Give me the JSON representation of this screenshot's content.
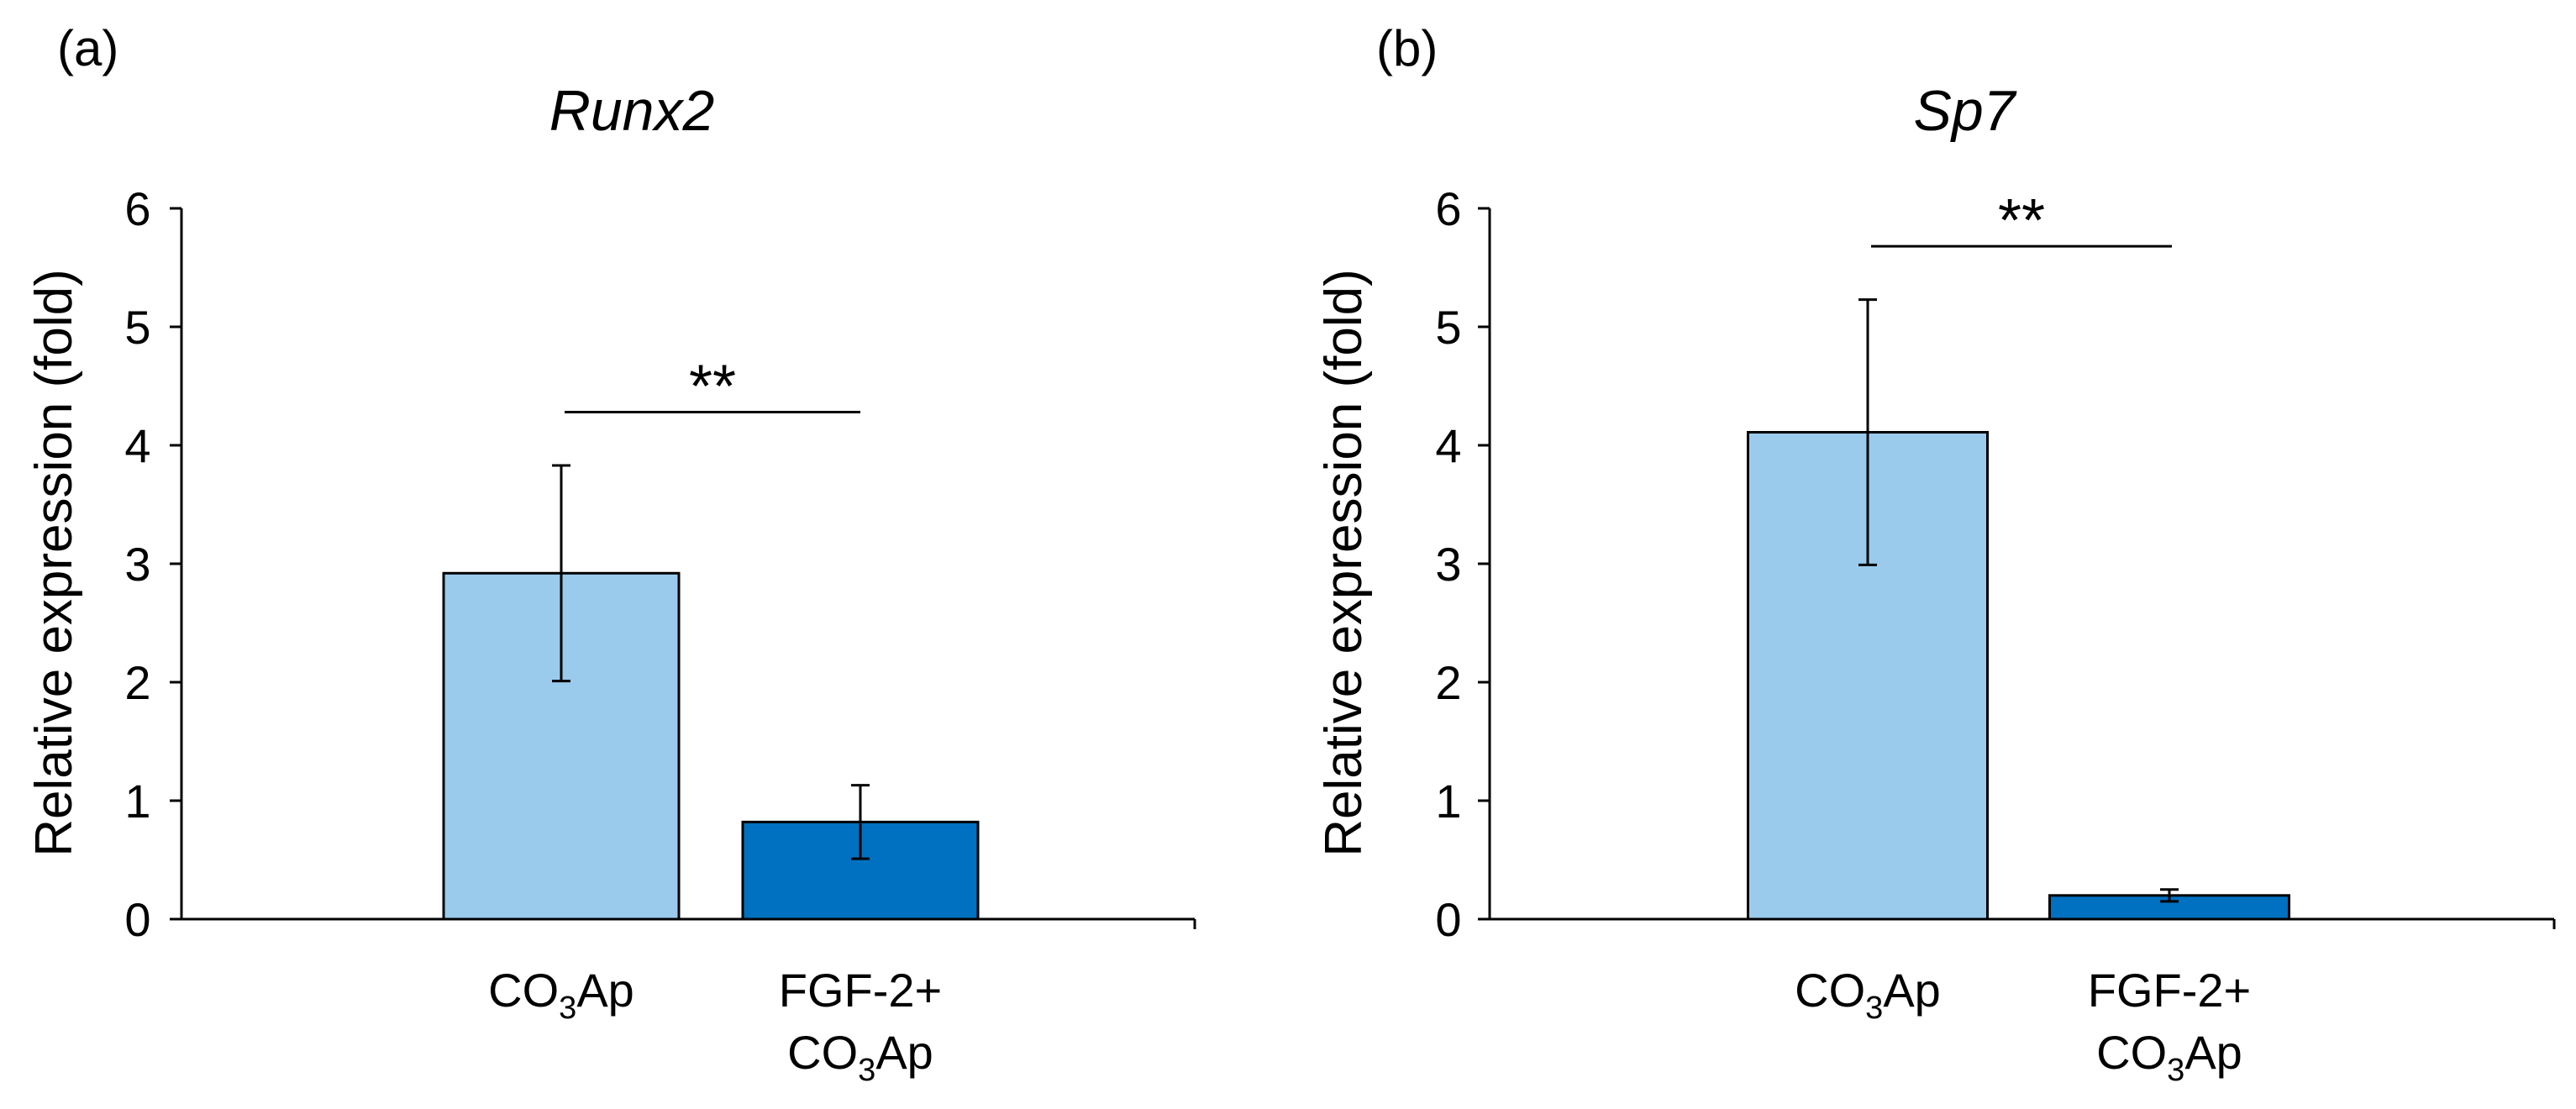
{
  "colors": {
    "bar_light": "#9ACBED",
    "bar_dark": "#0070C0",
    "axis": "#000000",
    "outline": "#000000"
  },
  "chart_data": [
    {
      "type": "bar",
      "panel_label": "(a)",
      "title": "Runx2",
      "ylabel": "Relative expression (fold)",
      "xlabel": "",
      "ylim": [
        0,
        6
      ],
      "yticks": [
        "0",
        "1",
        "2",
        "3",
        "4",
        "5",
        "6"
      ],
      "categories": [
        {
          "base": "CO",
          "sub": "3",
          "rest": "Ap",
          "prefix": ""
        },
        {
          "base": "CO",
          "sub": "3",
          "rest": "Ap",
          "prefix": "FGF-2+"
        }
      ],
      "values": [
        2.92,
        0.82
      ],
      "errors": [
        0.91,
        0.31
      ],
      "significance": {
        "label": "**",
        "y": 4.28
      }
    },
    {
      "type": "bar",
      "panel_label": "(b)",
      "title": "Sp7",
      "ylabel": "Relative expression (fold)",
      "xlabel": "",
      "ylim": [
        0,
        6
      ],
      "yticks": [
        "0",
        "1",
        "2",
        "3",
        "4",
        "5",
        "6"
      ],
      "categories": [
        {
          "base": "CO",
          "sub": "3",
          "rest": "Ap",
          "prefix": ""
        },
        {
          "base": "CO",
          "sub": "3",
          "rest": "Ap",
          "prefix": "FGF-2+"
        }
      ],
      "values": [
        4.11,
        0.2
      ],
      "errors": [
        1.12,
        0.05
      ],
      "significance": {
        "label": "**",
        "y": 5.68
      }
    }
  ]
}
